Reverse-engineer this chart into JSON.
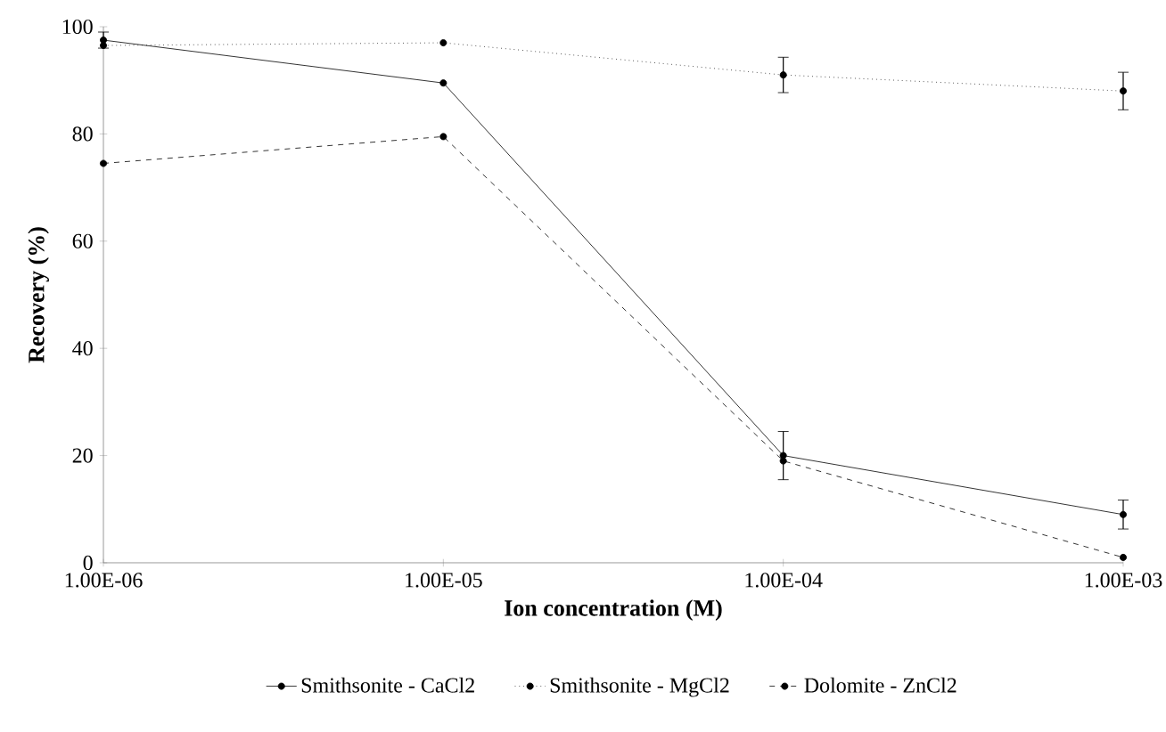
{
  "chart_data": {
    "type": "line",
    "xlabel": "Ion concentration (M)",
    "ylabel": "Recovery (%)",
    "categories": [
      "1.00E-06",
      "1.00E-05",
      "1.00E-04",
      "1.00E-03"
    ],
    "ylim": [
      0,
      100
    ],
    "yticks": [
      0,
      20,
      40,
      60,
      80,
      100
    ],
    "legend": "bottom",
    "marker": "circle",
    "series": [
      {
        "name": "Smithsonite - CaCl2",
        "color": "#000000",
        "line_style": "solid",
        "values": [
          97.5,
          89.5,
          20,
          9
        ],
        "errors": [
          1.5,
          null,
          4.5,
          2.7
        ]
      },
      {
        "name": "Smithsonite - MgCl2",
        "color": "#000000",
        "line_style": "dotted",
        "values": [
          96.5,
          97,
          91,
          88
        ],
        "errors": [
          null,
          null,
          3.3,
          3.5
        ]
      },
      {
        "name": "Dolomite - ZnCl2",
        "color": "#000000",
        "line_style": "dashed",
        "values": [
          74.5,
          79.5,
          19,
          1
        ],
        "errors": [
          null,
          null,
          null,
          null
        ]
      }
    ]
  }
}
